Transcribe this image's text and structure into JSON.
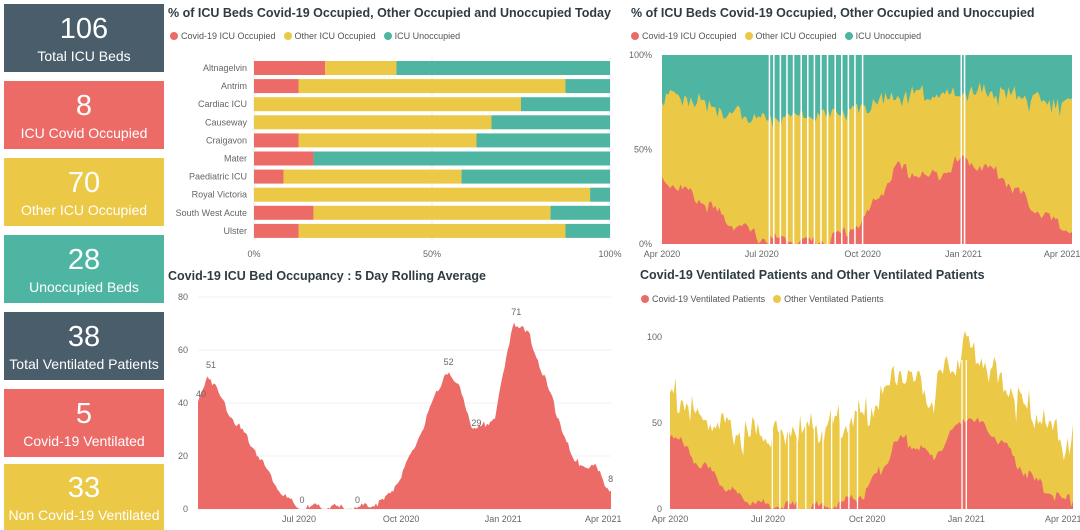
{
  "colors": {
    "covid": "#ec6b67",
    "other": "#ebc846",
    "unoccupied": "#4fb5a3",
    "navy": "#4a5d6b"
  },
  "kpis": [
    {
      "value": "106",
      "label": "Total ICU Beds",
      "color": "navy"
    },
    {
      "value": "8",
      "label": "ICU Covid Occupied",
      "color": "red"
    },
    {
      "value": "70",
      "label": "Other ICU Occupied",
      "color": "yellow"
    },
    {
      "value": "28",
      "label": "Unoccupied Beds",
      "color": "teal"
    },
    {
      "value": "38",
      "label": "Total Ventilated Patients",
      "color": "navy"
    },
    {
      "value": "5",
      "label": "Covid-19 Ventilated",
      "color": "red"
    },
    {
      "value": "33",
      "label": "Non Covid-19 Ventilated",
      "color": "yellow"
    }
  ],
  "panels": {
    "today": {
      "title": "% of ICU Beds Covid-19 Occupied, Other Occupied and Unoccupied Today",
      "legend": [
        "Covid-19 ICU Occupied",
        "Other ICU Occupied",
        "ICU Unoccupied"
      ]
    },
    "history": {
      "title": "% of ICU Beds Covid-19 Occupied, Other Occupied and Unoccupied",
      "legend": [
        "Covid-19 ICU Occupied",
        "Other ICU Occupied",
        "ICU Unoccupied"
      ]
    },
    "rolling": {
      "title": "Covid-19 ICU Bed Occupancy : 5 Day Rolling Average"
    },
    "ventilated": {
      "title": "Covid-19 Ventilated Patients and Other Ventilated Patients",
      "legend": [
        "Covid-19 Ventilated Patients",
        "Other Ventilated Patients"
      ]
    }
  },
  "chart_data": [
    {
      "type": "bar",
      "orientation": "horizontal-stacked-100",
      "title": "% of ICU Beds Covid-19 Occupied, Other Occupied and Unoccupied Today",
      "categories": [
        "Altnagelvin",
        "Antrim",
        "Cardiac ICU",
        "Causeway",
        "Craigavon",
        "Mater",
        "Paediatric ICU",
        "Royal Victoria",
        "South West Acute",
        "Ulster"
      ],
      "series": [
        {
          "name": "Covid-19 ICU Occupied",
          "values": [
            20,
            12.5,
            0,
            0,
            12.5,
            16.7,
            8.3,
            0,
            16.7,
            12.5
          ]
        },
        {
          "name": "Other ICU Occupied",
          "values": [
            20,
            75,
            75,
            66.7,
            50,
            0,
            50,
            94.4,
            66.6,
            75
          ]
        },
        {
          "name": "ICU Unoccupied",
          "values": [
            60,
            12.5,
            25,
            33.3,
            37.5,
            83.3,
            41.7,
            5.6,
            16.7,
            12.5
          ]
        }
      ],
      "xticks": [
        "0%",
        "50%",
        "100%"
      ],
      "xlim": [
        0,
        100
      ]
    },
    {
      "type": "area",
      "stacking": "percent",
      "title": "% of ICU Beds Covid-19 Occupied, Other Occupied and Unoccupied",
      "x": [
        "2020-04-01",
        "2020-05-01",
        "2020-06-01",
        "2020-07-01",
        "2020-08-01",
        "2020-09-01",
        "2020-10-01",
        "2020-11-01",
        "2020-12-01",
        "2021-01-01",
        "2021-02-01",
        "2021-03-01",
        "2021-04-01"
      ],
      "series": [
        {
          "name": "Covid-19 ICU Occupied",
          "values": [
            35,
            25,
            12,
            3,
            1,
            2,
            12,
            40,
            35,
            45,
            38,
            22,
            8
          ]
        },
        {
          "name": "Other ICU Occupied",
          "values": [
            45,
            50,
            58,
            62,
            65,
            66,
            60,
            38,
            45,
            35,
            42,
            55,
            66
          ]
        },
        {
          "name": "ICU Unoccupied",
          "values": [
            20,
            25,
            30,
            35,
            34,
            32,
            28,
            22,
            20,
            20,
            20,
            23,
            26
          ]
        }
      ],
      "xticks": [
        "Apr 2020",
        "Jul 2020",
        "Oct 2020",
        "Jan 2021",
        "Apr 2021"
      ],
      "yticks": [
        "0%",
        "50%",
        "100%"
      ],
      "ylim": [
        0,
        100
      ]
    },
    {
      "type": "area",
      "title": "Covid-19 ICU Bed Occupancy : 5 Day Rolling Average",
      "x": [
        "2020-04-01",
        "2020-04-10",
        "2020-05-01",
        "2020-05-20",
        "2020-06-15",
        "2020-07-01",
        "2020-07-20",
        "2020-08-20",
        "2020-09-15",
        "2020-10-01",
        "2020-10-20",
        "2020-11-10",
        "2020-11-25",
        "2020-12-05",
        "2020-12-25",
        "2021-01-10",
        "2021-01-25",
        "2021-02-15",
        "2021-03-05",
        "2021-03-25",
        "2021-04-05"
      ],
      "values": [
        40,
        51,
        35,
        24,
        6,
        0,
        1,
        0,
        3,
        12,
        30,
        52,
        44,
        29,
        35,
        71,
        65,
        40,
        18,
        16,
        8
      ],
      "data_labels": [
        {
          "x": "2020-04-01",
          "label": "40"
        },
        {
          "x": "2020-04-10",
          "label": "51"
        },
        {
          "x": "2020-07-01",
          "label": "0"
        },
        {
          "x": "2020-08-20",
          "label": "0"
        },
        {
          "x": "2020-11-10",
          "label": "52"
        },
        {
          "x": "2020-12-05",
          "label": "29"
        },
        {
          "x": "2021-01-10",
          "label": "71"
        },
        {
          "x": "2021-04-05",
          "label": "8"
        }
      ],
      "xticks": [
        "Jul 2020",
        "Oct 2020",
        "Jan 2021",
        "Apr 2021"
      ],
      "yticks": [
        "0",
        "20",
        "40",
        "60",
        "80"
      ],
      "ylim": [
        0,
        80
      ]
    },
    {
      "type": "area",
      "stacking": "stacked",
      "title": "Covid-19 Ventilated Patients and Other Ventilated Patients",
      "x": [
        "2020-04-01",
        "2020-05-01",
        "2020-06-01",
        "2020-07-01",
        "2020-08-01",
        "2020-09-01",
        "2020-10-01",
        "2020-11-01",
        "2020-12-01",
        "2021-01-01",
        "2021-02-01",
        "2021-03-01",
        "2021-04-01"
      ],
      "series": [
        {
          "name": "Covid-19 Ventilated Patients",
          "values": [
            45,
            25,
            8,
            2,
            1,
            2,
            10,
            42,
            30,
            55,
            40,
            18,
            5
          ]
        },
        {
          "name": "Other Ventilated Patients",
          "values": [
            25,
            25,
            35,
            42,
            44,
            48,
            45,
            40,
            35,
            42,
            35,
            40,
            33
          ]
        }
      ],
      "xticks": [
        "Apr 2020",
        "Jul 2020",
        "Oct 2020",
        "Jan 2021",
        "Apr 2021"
      ],
      "yticks": [
        "0",
        "50",
        "100"
      ],
      "ylim": [
        0,
        110
      ]
    }
  ]
}
